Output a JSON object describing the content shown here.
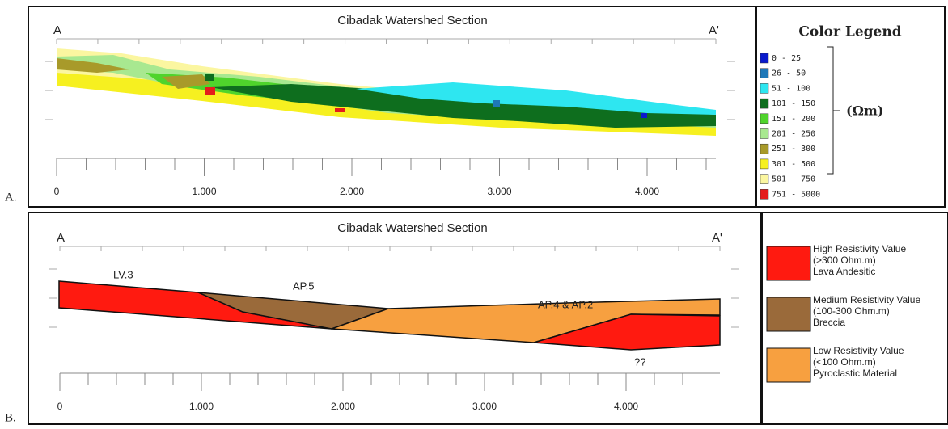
{
  "panel_a": {
    "label": "A.",
    "title": "Cibadak Watershed Section",
    "left_end": "A",
    "right_end": "A'",
    "x_ticks": [
      "0",
      "1.000",
      "2.000",
      "3.000",
      "4.000"
    ],
    "legend": {
      "title": "Color Legend",
      "unit": "(Ωm)",
      "items": [
        {
          "label": "0 - 25",
          "color": "#0a1acc"
        },
        {
          "label": "26 - 50",
          "color": "#1e78b8"
        },
        {
          "label": "51 - 100",
          "color": "#2ee6f0"
        },
        {
          "label": "101 - 150",
          "color": "#0e6e1e"
        },
        {
          "label": "151 - 200",
          "color": "#4fd42c"
        },
        {
          "label": "201 - 250",
          "color": "#a8e890"
        },
        {
          "label": "251 - 300",
          "color": "#a89a2a"
        },
        {
          "label": "301 - 500",
          "color": "#f6f020"
        },
        {
          "label": "501 - 750",
          "color": "#fbf6a0"
        },
        {
          "label": "751 - 5000",
          "color": "#e41c1c"
        }
      ]
    }
  },
  "panel_b": {
    "label": "B.",
    "title": "Cibadak Watershed Section",
    "left_end": "A",
    "right_end": "A'",
    "x_ticks": [
      "0",
      "1.000",
      "2.000",
      "3.000",
      "4.000"
    ],
    "annotations": [
      "LV.3",
      "AP.5",
      "AP.4 & AP.2",
      "??"
    ],
    "legend": {
      "items": [
        {
          "lines": [
            "High Resistivity Value",
            "(>300 Ohm.m)",
            "Lava Andesitic"
          ],
          "color": "#ff1a10"
        },
        {
          "lines": [
            "Medium Resistivity Value",
            "(100-300 Ohm.m)",
            "Breccia"
          ],
          "color": "#9a6a3a"
        },
        {
          "lines": [
            "Low Resistivity Value",
            "(<100 Ohm.m)",
            "Pyroclastic Material"
          ],
          "color": "#f7a040"
        }
      ]
    }
  }
}
